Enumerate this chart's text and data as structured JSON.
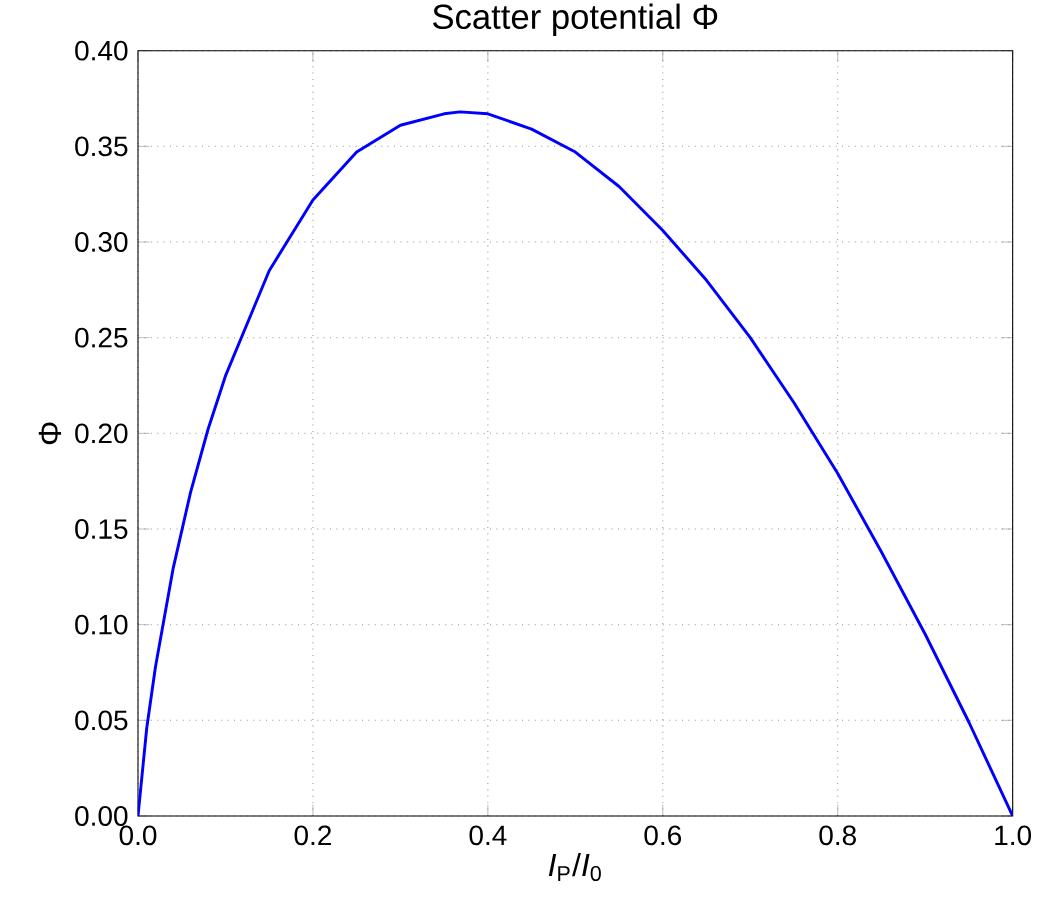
{
  "chart_data": {
    "type": "line",
    "title": "Scatter potential Φ",
    "xlabel": "*I*$_{P}$/*I*$_{0}$",
    "ylabel": "Φ",
    "x": [
      0,
      0.01,
      0.02,
      0.04,
      0.06,
      0.08,
      0.1,
      0.15,
      0.2,
      0.25,
      0.3,
      0.35,
      0.368,
      0.4,
      0.45,
      0.5,
      0.55,
      0.6,
      0.65,
      0.7,
      0.75,
      0.8,
      0.85,
      0.9,
      0.95,
      1
    ],
    "series": [
      {
        "color": "#0000ff",
        "values": [
          0,
          0.046,
          0.078,
          0.129,
          0.169,
          0.202,
          0.23,
          0.285,
          0.322,
          0.347,
          0.361,
          0.367,
          0.368,
          0.367,
          0.359,
          0.347,
          0.329,
          0.306,
          0.28,
          0.25,
          0.216,
          0.179,
          0.138,
          0.095,
          0.049,
          0
        ]
      }
    ],
    "xlim": [
      0,
      1
    ],
    "ylim": [
      0,
      0.4
    ],
    "xticks": [
      {
        "value": 0,
        "label": "0.0"
      },
      {
        "value": 0.2,
        "label": "0.2"
      },
      {
        "value": 0.4,
        "label": "0.4"
      },
      {
        "value": 0.6,
        "label": "0.6"
      },
      {
        "value": 0.8,
        "label": "0.8"
      },
      {
        "value": 1,
        "label": "1.0"
      }
    ],
    "yticks": [
      {
        "value": 0,
        "label": "0.00"
      },
      {
        "value": 0.05,
        "label": "0.05"
      },
      {
        "value": 0.1,
        "label": "0.10"
      },
      {
        "value": 0.15,
        "label": "0.15"
      },
      {
        "value": 0.2,
        "label": "0.20"
      },
      {
        "value": 0.25,
        "label": "0.25"
      },
      {
        "value": 0.3,
        "label": "0.30"
      },
      {
        "value": 0.35,
        "label": "0.35"
      },
      {
        "value": 0.4,
        "label": "0.40"
      }
    ],
    "grid": true,
    "marker": "none",
    "line_style": "solid"
  }
}
